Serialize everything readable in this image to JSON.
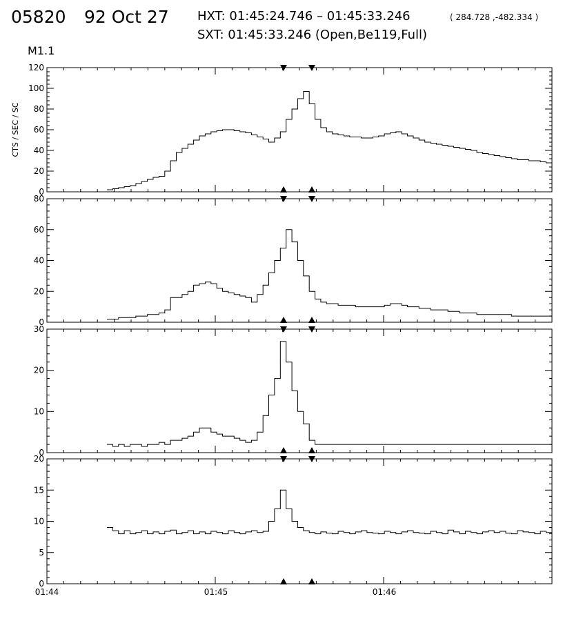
{
  "header": {
    "event_id": "05820",
    "date": "92 Oct 27",
    "hxt_line": "HXT: 01:45:24.746 – 01:45:33.246",
    "hxt_coords": "( 284.728 ,-482.334 )",
    "sxt_line": "SXT: 01:45:33.246 (Open,Be119,Full)",
    "flare_class": "M1.1"
  },
  "chart_data": [
    {
      "type": "line",
      "ylabel": "CTS / SEC / SC",
      "ylim": [
        0,
        120
      ],
      "yticks": [
        0,
        20,
        40,
        60,
        80,
        100,
        120
      ],
      "series": [
        {
          "values": [
            2,
            3,
            4,
            5,
            6,
            8,
            10,
            12,
            14,
            15,
            20,
            30,
            38,
            42,
            46,
            50,
            54,
            56,
            58,
            59,
            60,
            60,
            59,
            58,
            57,
            55,
            53,
            51,
            48,
            52,
            58,
            70,
            80,
            90,
            97,
            85,
            70,
            62,
            58,
            56,
            55,
            54,
            53,
            53,
            52,
            52,
            53,
            54,
            56,
            57,
            58,
            56,
            54,
            52,
            50,
            48,
            47,
            46,
            45,
            44,
            43,
            42,
            41,
            40,
            38,
            37,
            36,
            35,
            34,
            33,
            32,
            31,
            31,
            30,
            30,
            29,
            28
          ]
        }
      ]
    },
    {
      "type": "line",
      "ylabel": "",
      "ylim": [
        0,
        80
      ],
      "yticks": [
        0,
        20,
        40,
        60,
        80
      ],
      "series": [
        {
          "values": [
            2,
            2,
            3,
            3,
            3,
            4,
            4,
            5,
            5,
            6,
            8,
            16,
            16,
            18,
            20,
            24,
            25,
            26,
            25,
            22,
            20,
            19,
            18,
            17,
            16,
            13,
            18,
            24,
            32,
            40,
            48,
            60,
            52,
            40,
            30,
            20,
            15,
            13,
            12,
            12,
            11,
            11,
            11,
            10,
            10,
            10,
            10,
            10,
            11,
            12,
            12,
            11,
            10,
            10,
            9,
            9,
            8,
            8,
            8,
            7,
            7,
            6,
            6,
            6,
            5,
            5,
            5,
            5,
            5,
            5,
            4,
            4,
            4,
            4,
            4,
            4,
            4
          ]
        }
      ]
    },
    {
      "type": "line",
      "ylabel": "",
      "ylim": [
        0,
        30
      ],
      "yticks": [
        0,
        10,
        20,
        30
      ],
      "series": [
        {
          "values": [
            2,
            1.5,
            2,
            1.5,
            2,
            2,
            1.5,
            2,
            2,
            2.5,
            2,
            3,
            3,
            3.5,
            4,
            5,
            6,
            6,
            5,
            4.5,
            4,
            4,
            3.5,
            3,
            2.5,
            3,
            5,
            9,
            14,
            18,
            27,
            22,
            15,
            10,
            7,
            3,
            2,
            2,
            2,
            2,
            2,
            2,
            2,
            2,
            2,
            2,
            2,
            2,
            2,
            2,
            2,
            2,
            2,
            2,
            2,
            2,
            2,
            2,
            2,
            2,
            2,
            2,
            2,
            2,
            2,
            2,
            2,
            2,
            2,
            2,
            2,
            2,
            2,
            2,
            2,
            2,
            2
          ]
        }
      ]
    },
    {
      "type": "line",
      "ylabel": "",
      "ylim": [
        0,
        20
      ],
      "yticks": [
        0,
        5,
        10,
        15,
        20
      ],
      "series": [
        {
          "values": [
            9,
            8.5,
            8,
            8.5,
            8,
            8.2,
            8.5,
            8,
            8.3,
            8,
            8.4,
            8.6,
            8,
            8.2,
            8.5,
            8,
            8.3,
            8,
            8.4,
            8.2,
            8,
            8.5,
            8.2,
            8,
            8.3,
            8.5,
            8.2,
            8.4,
            10,
            12,
            15,
            12,
            10,
            9,
            8.5,
            8.2,
            8,
            8.3,
            8.1,
            8,
            8.4,
            8.2,
            8,
            8.3,
            8.5,
            8.2,
            8.1,
            8,
            8.4,
            8.2,
            8,
            8.3,
            8.5,
            8.2,
            8.1,
            8,
            8.4,
            8.2,
            8,
            8.6,
            8.3,
            8,
            8.4,
            8.2,
            8,
            8.3,
            8.5,
            8.2,
            8.4,
            8.1,
            8,
            8.5,
            8.3,
            8.2,
            8,
            8.4,
            8.2
          ]
        }
      ]
    }
  ],
  "x_axis": {
    "tick_labels": [
      "01:44",
      "01:45",
      "01:46"
    ]
  }
}
